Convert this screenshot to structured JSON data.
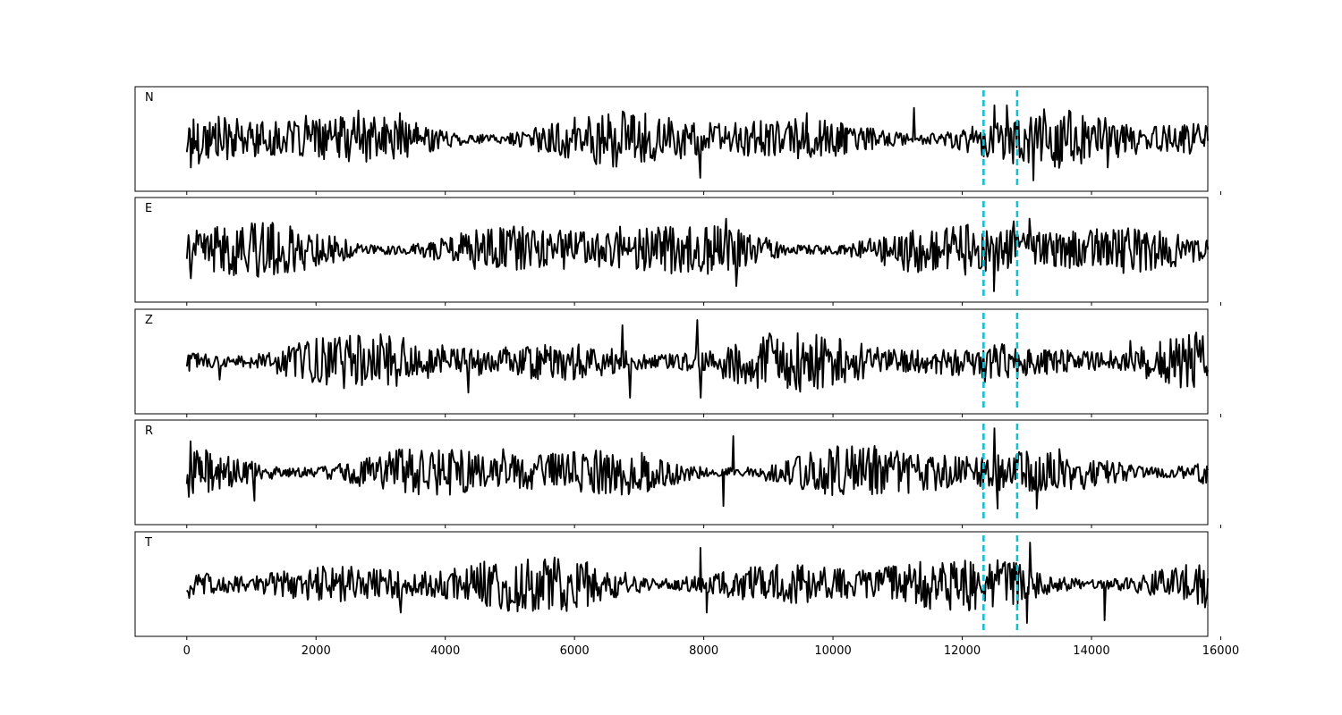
{
  "colors": {
    "trace": "#000000",
    "marker": "#17becf",
    "axes": "#000000",
    "background": "#ffffff"
  },
  "chart_data": {
    "type": "line",
    "layout": "5 stacked panels sharing x-axis",
    "xlim": [
      -800,
      15800
    ],
    "x_ticks": [
      0,
      2000,
      4000,
      6000,
      8000,
      10000,
      12000,
      14000,
      16000
    ],
    "x_tick_labels": [
      "0",
      "2000",
      "4000",
      "6000",
      "8000",
      "10000",
      "12000",
      "14000",
      "16000"
    ],
    "grid": false,
    "legend": "none",
    "y_ticks": "none",
    "markers": [
      {
        "x": 12330,
        "style": "dashed",
        "color": "#17becf"
      },
      {
        "x": 12850,
        "style": "dashed",
        "color": "#17becf"
      }
    ],
    "trace": {
      "start": 0,
      "end": 15800,
      "waveform": "noise-like seismogram, ~1000 cycles, normalized amplitude -1..1"
    },
    "panels": [
      {
        "label": "N",
        "peaks": [
          {
            "x": 70,
            "y": -0.55
          },
          {
            "x": 1850,
            "y": 0.45
          },
          {
            "x": 2650,
            "y": 0.55
          },
          {
            "x": 3300,
            "y": 0.5
          },
          {
            "x": 7950,
            "y": -0.75
          },
          {
            "x": 9600,
            "y": 0.5
          },
          {
            "x": 11250,
            "y": 0.6
          },
          {
            "x": 12500,
            "y": 0.65
          },
          {
            "x": 12700,
            "y": 0.65
          },
          {
            "x": 13100,
            "y": -0.8
          },
          {
            "x": 13650,
            "y": 0.55
          },
          {
            "x": 14250,
            "y": -0.55
          }
        ]
      },
      {
        "label": "E",
        "peaks": [
          {
            "x": 70,
            "y": -0.55
          },
          {
            "x": 1050,
            "y": 0.5
          },
          {
            "x": 4900,
            "y": 0.4
          },
          {
            "x": 6700,
            "y": 0.45
          },
          {
            "x": 8350,
            "y": 0.6
          },
          {
            "x": 8500,
            "y": -0.7
          },
          {
            "x": 12500,
            "y": -0.8
          },
          {
            "x": 12800,
            "y": 0.55
          },
          {
            "x": 13050,
            "y": 0.6
          },
          {
            "x": 14500,
            "y": -0.45
          }
        ]
      },
      {
        "label": "Z",
        "peaks": [
          {
            "x": 500,
            "y": -0.35
          },
          {
            "x": 4350,
            "y": -0.6
          },
          {
            "x": 6750,
            "y": 0.7
          },
          {
            "x": 6850,
            "y": -0.7
          },
          {
            "x": 7900,
            "y": 0.8
          },
          {
            "x": 7950,
            "y": -0.7
          },
          {
            "x": 12350,
            "y": -0.4
          },
          {
            "x": 14600,
            "y": 0.4
          }
        ]
      },
      {
        "label": "R",
        "peaks": [
          {
            "x": 70,
            "y": 0.6
          },
          {
            "x": 1050,
            "y": -0.55
          },
          {
            "x": 4900,
            "y": 0.45
          },
          {
            "x": 8450,
            "y": 0.7
          },
          {
            "x": 8300,
            "y": -0.65
          },
          {
            "x": 12500,
            "y": 0.85
          },
          {
            "x": 12550,
            "y": -0.7
          },
          {
            "x": 13150,
            "y": -0.7
          },
          {
            "x": 13500,
            "y": 0.45
          }
        ]
      },
      {
        "label": "T",
        "peaks": [
          {
            "x": 3300,
            "y": 0.55
          },
          {
            "x": 3300,
            "y": -0.55
          },
          {
            "x": 7950,
            "y": 0.7
          },
          {
            "x": 8050,
            "y": -0.55
          },
          {
            "x": 13050,
            "y": 0.8
          },
          {
            "x": 13000,
            "y": -0.75
          },
          {
            "x": 14200,
            "y": -0.7
          },
          {
            "x": 15750,
            "y": -0.45
          }
        ]
      }
    ]
  }
}
